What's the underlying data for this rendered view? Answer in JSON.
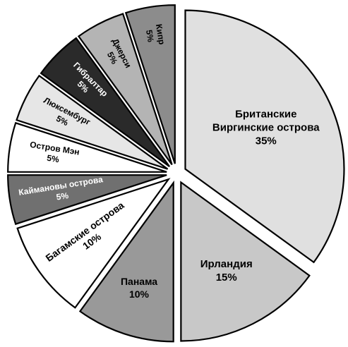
{
  "chart_data": {
    "type": "pie",
    "title": "",
    "slices": [
      {
        "label": "Британские Виргинские острова",
        "label_lines": [
          "Британские",
          "Виргинские острова"
        ],
        "value": 35,
        "value_label": "35%",
        "fill": "#e0e0e0",
        "text": "#000000"
      },
      {
        "label": "Ирландия",
        "label_lines": [
          "Ирландия"
        ],
        "value": 15,
        "value_label": "15%",
        "fill": "#c8c8c8",
        "text": "#000000"
      },
      {
        "label": "Панама",
        "label_lines": [
          "Панама"
        ],
        "value": 10,
        "value_label": "10%",
        "fill": "#999999",
        "text": "#000000"
      },
      {
        "label": "Багамские острова",
        "label_lines": [
          "Багамские острова"
        ],
        "value": 10,
        "value_label": "10%",
        "fill": "#ffffff",
        "text": "#000000"
      },
      {
        "label": "Каймановы острова",
        "label_lines": [
          "Каймановы острова"
        ],
        "value": 5,
        "value_label": "5%",
        "fill": "#707070",
        "text": "#ffffff"
      },
      {
        "label": "Остров Мэн",
        "label_lines": [
          "Остров Мэн"
        ],
        "value": 5,
        "value_label": "5%",
        "fill": "#ffffff",
        "text": "#000000"
      },
      {
        "label": "Люксембург",
        "label_lines": [
          "Люксембург"
        ],
        "value": 5,
        "value_label": "5%",
        "fill": "#e6e6e6",
        "text": "#000000"
      },
      {
        "label": "Гибралтар",
        "label_lines": [
          "Гибралтар"
        ],
        "value": 5,
        "value_label": "5%",
        "fill": "#2a2a2a",
        "text": "#ffffff"
      },
      {
        "label": "Джерси",
        "label_lines": [
          "Джерси"
        ],
        "value": 5,
        "value_label": "5%",
        "fill": "#b4b4b4",
        "text": "#000000"
      },
      {
        "label": "Кипр",
        "label_lines": [
          "Кипр"
        ],
        "value": 5,
        "value_label": "5%",
        "fill": "#8c8c8c",
        "text": "#000000"
      }
    ],
    "start_angle_deg": 0,
    "direction": "clockwise",
    "exploded": true,
    "labels_rotated_in_small_slices": true
  }
}
